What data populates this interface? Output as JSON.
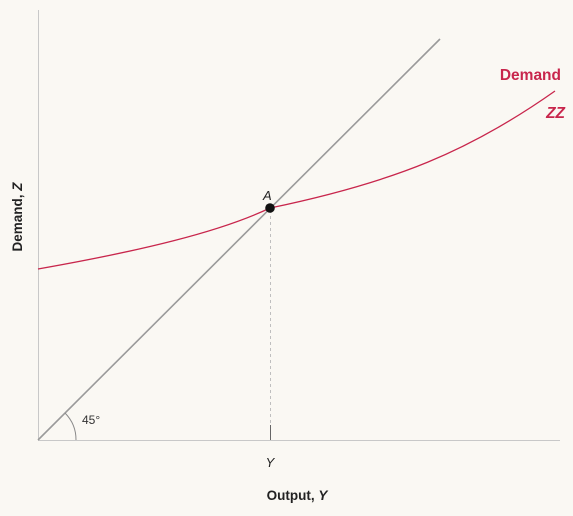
{
  "axes": {
    "y_label": "Demand, ",
    "y_label_var": "Z",
    "x_label": "Output, ",
    "x_label_var": "Y"
  },
  "point": {
    "label": "A"
  },
  "tick": {
    "label": "Y"
  },
  "angle": {
    "label": "45°"
  },
  "curve": {
    "name": "Demand",
    "id_label": "ZZ",
    "color": "#c8264c"
  },
  "colors": {
    "background": "#faf8f3",
    "line_45": "#9a9a9a",
    "axis": "#c8c8c8"
  }
}
